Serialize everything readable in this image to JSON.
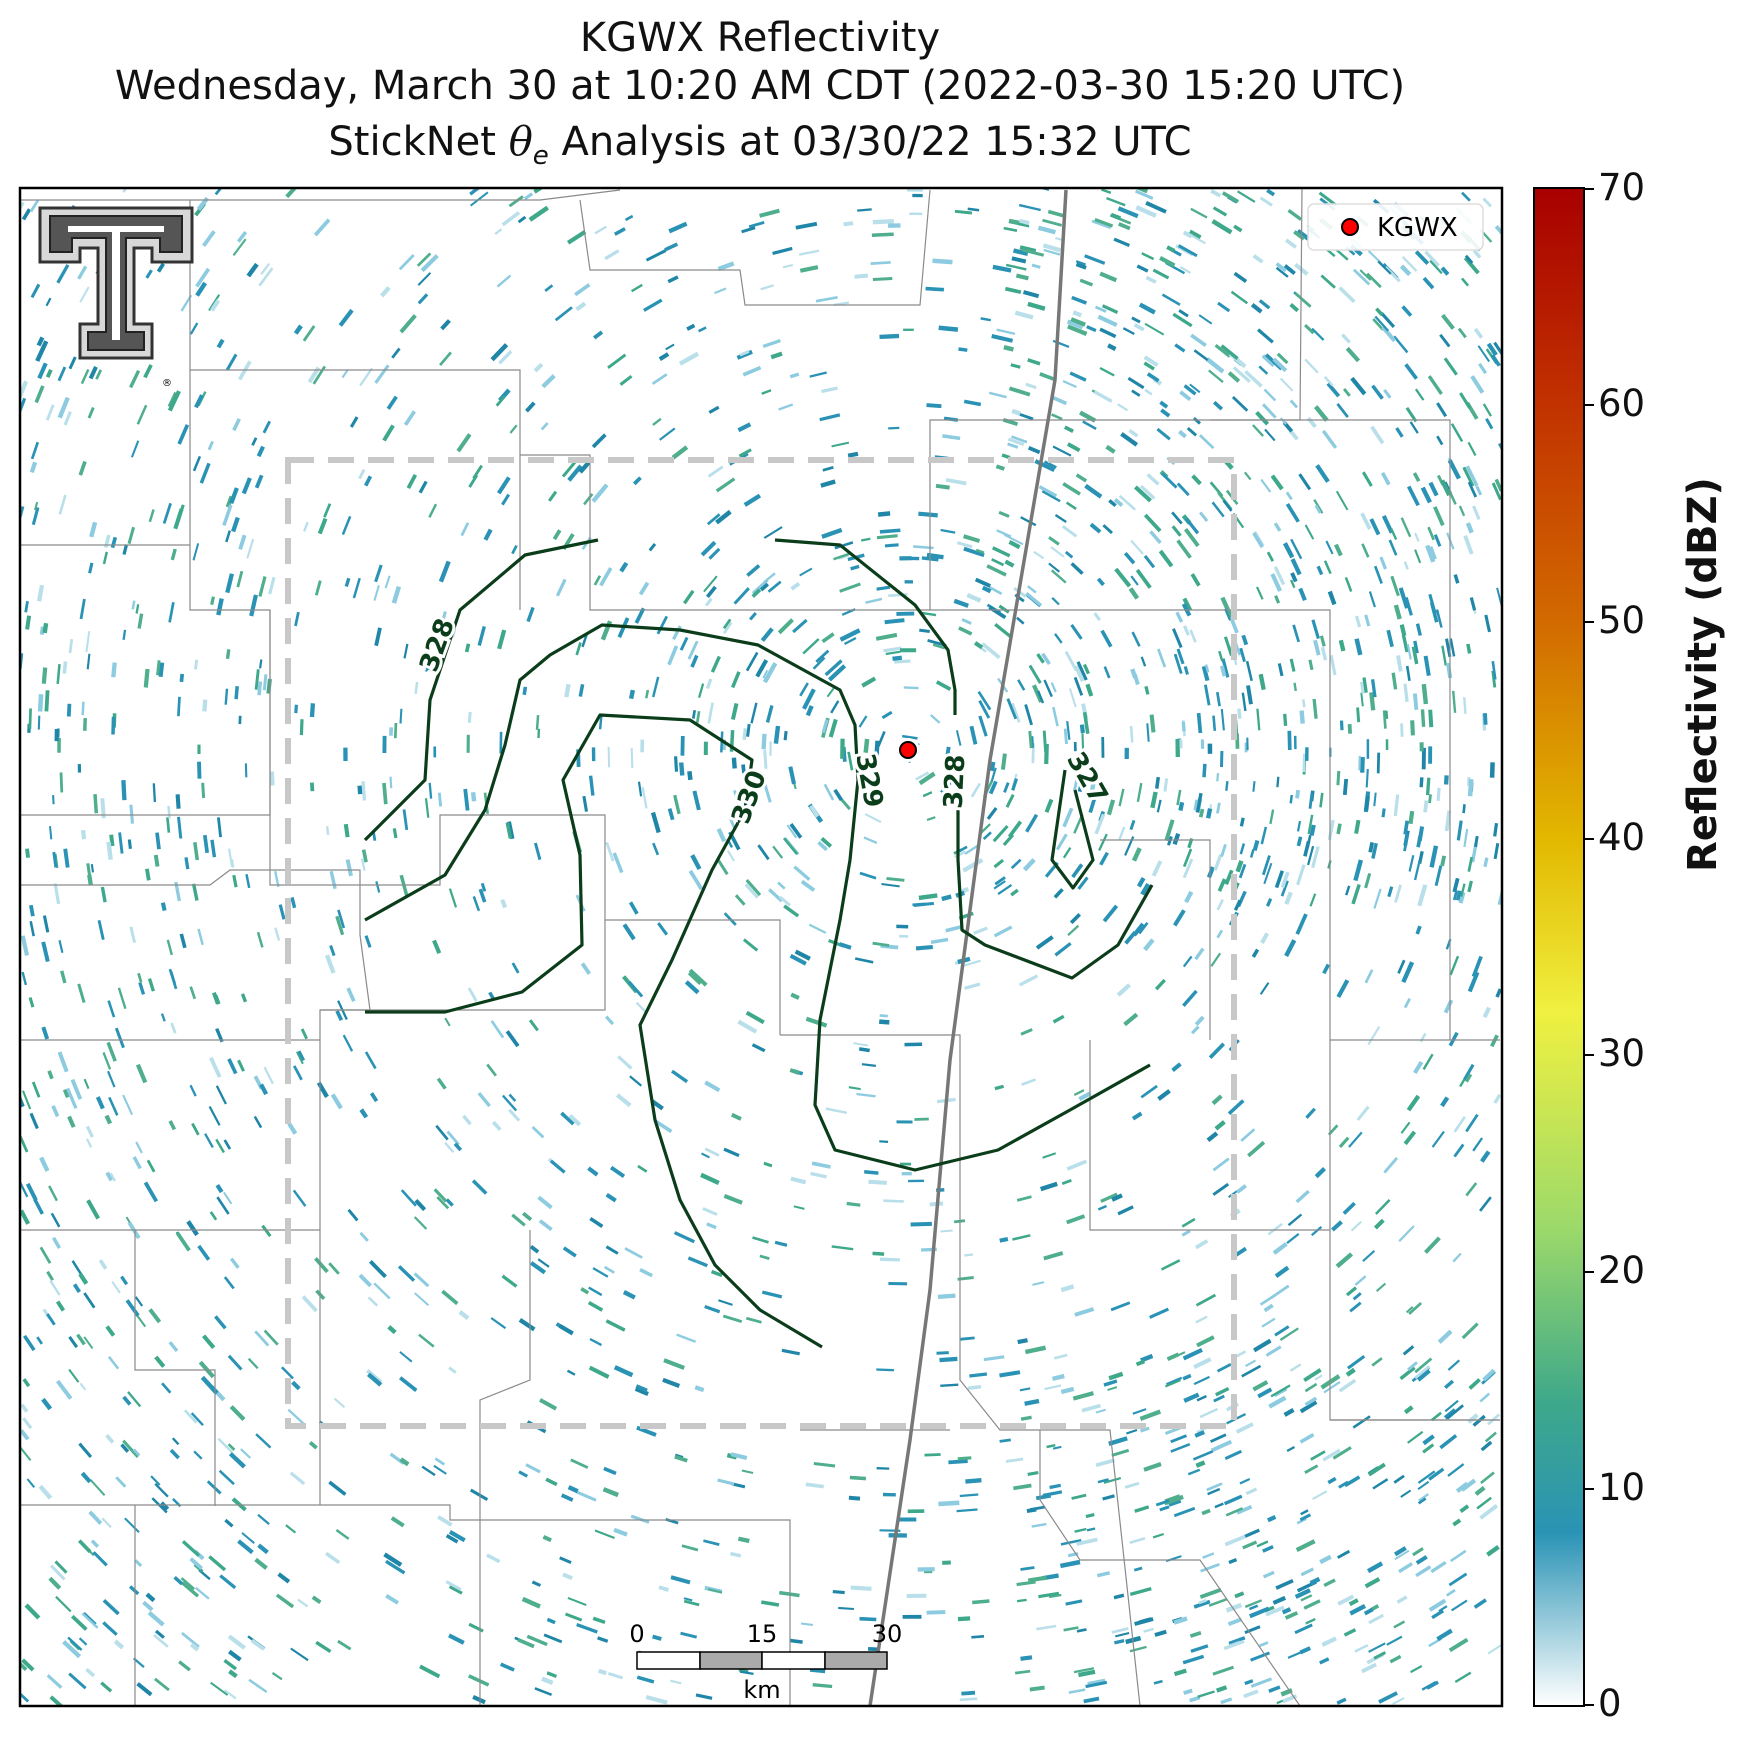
{
  "title": {
    "line1": "KGWX Reflectivity",
    "line2": "Wednesday, March 30 at 10:20 AM CDT (2022-03-30 15:20 UTC)",
    "line3_prefix": "StickNet ",
    "line3_symbol": "θ",
    "line3_sub": "e",
    "line3_suffix": " Analysis at 03/30/22 15:32 UTC"
  },
  "legend": {
    "radar_label": "KGWX",
    "marker_color": "#ff0000"
  },
  "contour_labels": [
    "328",
    "330",
    "329",
    "328",
    "327"
  ],
  "contour_color": "#0b3d1a",
  "scale_bar": {
    "ticks": [
      "0",
      "15",
      "30"
    ],
    "unit": "km"
  },
  "colorbar": {
    "label": "Reflectivity (dBZ)",
    "ticks": [
      "70",
      "60",
      "50",
      "40",
      "30",
      "20",
      "10",
      "0"
    ],
    "min": 0,
    "max": 70,
    "stops": [
      {
        "v": 0,
        "c": "#ffffff"
      },
      {
        "v": 8,
        "c": "#2a93b5"
      },
      {
        "v": 14,
        "c": "#3ea88a"
      },
      {
        "v": 22,
        "c": "#9bd96a"
      },
      {
        "v": 32,
        "c": "#f0f040"
      },
      {
        "v": 40,
        "c": "#e2b800"
      },
      {
        "v": 50,
        "c": "#d26a00"
      },
      {
        "v": 60,
        "c": "#c23200"
      },
      {
        "v": 70,
        "c": "#a80000"
      }
    ]
  },
  "logo": "Texas Tech double-T logo"
}
